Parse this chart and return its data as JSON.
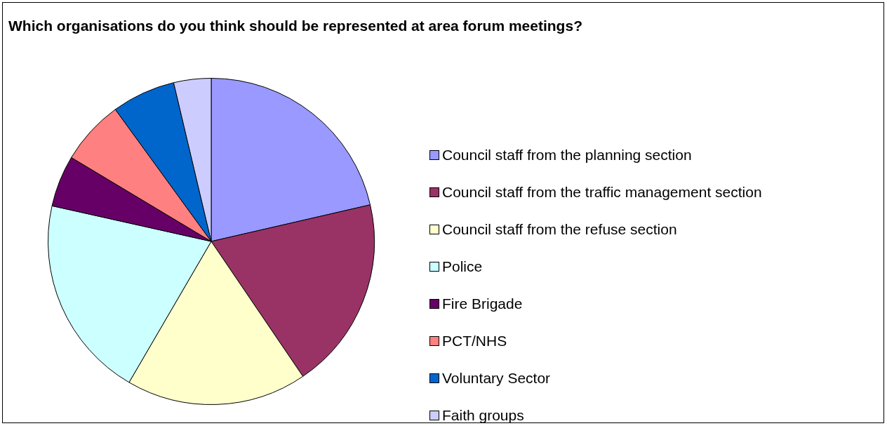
{
  "chart_data": {
    "type": "pie",
    "title": "Which organisations do you think should be represented at area forum meetings?",
    "categories": [
      "Council staff from the planning section",
      "Council staff from the traffic management section",
      "Council staff from the refuse section",
      "Police",
      "Fire Brigade",
      "PCT/NHS",
      "Voluntary Sector",
      "Faith groups"
    ],
    "values": [
      21.4,
      19.1,
      17.9,
      20.1,
      5.1,
      6.4,
      6.3,
      3.7
    ],
    "colors": [
      "#9999ff",
      "#993366",
      "#ffffcc",
      "#ccffff",
      "#660066",
      "#ff8080",
      "#0066cc",
      "#ccccff"
    ],
    "legend": "right"
  }
}
